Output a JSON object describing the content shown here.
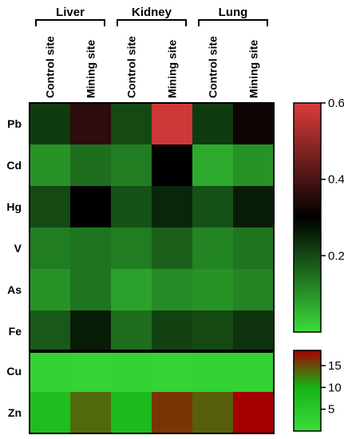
{
  "chart_data": {
    "type": "heatmap",
    "organs": [
      "Liver",
      "Kidney",
      "Lung"
    ],
    "columns": [
      "Control site",
      "Mining site",
      "Control site",
      "Mining site",
      "Control site",
      "Mining site"
    ],
    "panels": [
      {
        "rows": [
          "Pb",
          "Cd",
          "Hg",
          "V",
          "As",
          "Fe"
        ],
        "values": [
          [
            0.22,
            0.36,
            0.2,
            0.58,
            0.22,
            0.32
          ],
          [
            0.1,
            0.15,
            0.13,
            0.3,
            0.07,
            0.1
          ],
          [
            0.2,
            0.3,
            0.19,
            0.25,
            0.19,
            0.26
          ],
          [
            0.13,
            0.14,
            0.13,
            0.17,
            0.12,
            0.14
          ],
          [
            0.1,
            0.14,
            0.08,
            0.11,
            0.1,
            0.12
          ],
          [
            0.18,
            0.26,
            0.15,
            0.21,
            0.2,
            0.23
          ]
        ],
        "scale": {
          "min": 0.0,
          "mid": 0.3,
          "max": 0.6,
          "ticks": [
            "0.6",
            "0.4",
            "0.2"
          ],
          "tick_values": [
            0.6,
            0.4,
            0.2
          ]
        },
        "colors": {
          "low": "#3bdc3b",
          "mid": "#000000",
          "high": "#dc3c3c"
        }
      },
      {
        "rows": [
          "Cu",
          "Zn"
        ],
        "values": [
          [
            2.5,
            2.0,
            2.5,
            2.0,
            2.5,
            2.5
          ],
          [
            7.5,
            13.5,
            8.0,
            16.0,
            14.0,
            18.5
          ]
        ],
        "scale": {
          "min": 0.0,
          "mid": 10.0,
          "max": 18.5,
          "ticks": [
            "15",
            "10",
            "5"
          ],
          "tick_values": [
            15,
            10,
            5
          ]
        },
        "colors": {
          "low": "#3cdc3c",
          "mid": "#14b414",
          "high": "#a50000"
        }
      }
    ]
  }
}
